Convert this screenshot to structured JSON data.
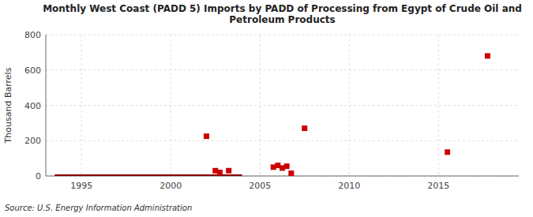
{
  "chart_data": {
    "type": "scatter",
    "title": "Monthly West Coast (PADD 5) Imports by PADD of Processing from Egypt of Crude Oil and\nPetroleum Products",
    "ylabel": "Thousand Barrels",
    "source": "Source: U.S. Energy Information Administration",
    "xlim": [
      1993.0,
      2019.5
    ],
    "ylim": [
      0,
      800
    ],
    "xticks": [
      1995,
      2000,
      2005,
      2010,
      2015
    ],
    "yticks": [
      0,
      200,
      400,
      600,
      800
    ],
    "grid": true,
    "series": [
      {
        "type": "scatter",
        "marker": "square",
        "color": "#cc0000",
        "x": [
          2002.0,
          2002.5,
          2002.75,
          2003.25,
          2005.75,
          2006.0,
          2006.25,
          2006.5,
          2006.75,
          2007.5,
          2015.5,
          2017.75
        ],
        "values": [
          225,
          30,
          20,
          30,
          50,
          60,
          45,
          55,
          15,
          270,
          135,
          680
        ]
      },
      {
        "type": "line",
        "color": "#8b0000",
        "x": [
          1993.5,
          2004.0
        ],
        "values": [
          0,
          0
        ]
      }
    ]
  }
}
